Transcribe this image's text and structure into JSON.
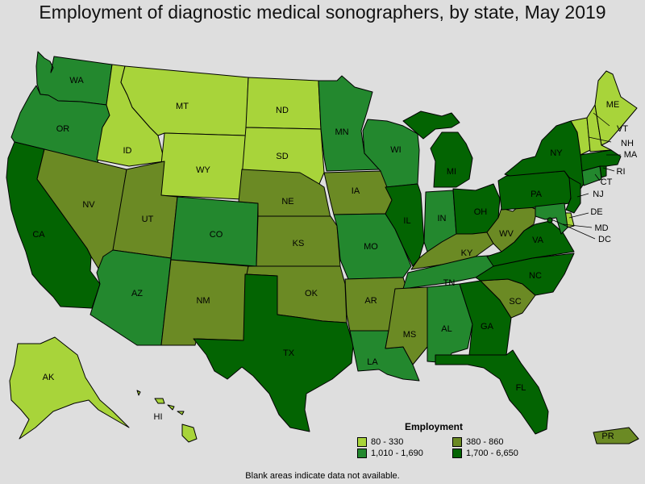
{
  "title": "Employment of diagnostic medical sonographers, by state, May 2019",
  "note": "Blank areas indicate data not available.",
  "colors": {
    "c1": "#a8d43a",
    "c2": "#6b8a24",
    "c3": "#23882e",
    "c4": "#036402"
  },
  "legend": {
    "title": "Employment",
    "items": [
      {
        "label": "80 - 330",
        "color": "#a8d43a"
      },
      {
        "label": "380 - 860",
        "color": "#6b8a24"
      },
      {
        "label": "1,010 - 1,690",
        "color": "#23882e"
      },
      {
        "label": "1,700 - 6,650",
        "color": "#036402"
      }
    ]
  },
  "states": {
    "WA": "WA",
    "OR": "OR",
    "CA": "CA",
    "NV": "NV",
    "ID": "ID",
    "MT": "MT",
    "WY": "WY",
    "UT": "UT",
    "AZ": "AZ",
    "CO": "CO",
    "NM": "NM",
    "ND": "ND",
    "SD": "SD",
    "NE": "NE",
    "KS": "KS",
    "OK": "OK",
    "TX": "TX",
    "MN": "MN",
    "IA": "IA",
    "MO": "MO",
    "AR": "AR",
    "LA": "LA",
    "WI": "WI",
    "IL": "IL",
    "MI": "MI",
    "IN": "IN",
    "OH": "OH",
    "KY": "KY",
    "TN": "TN",
    "MS": "MS",
    "AL": "AL",
    "GA": "GA",
    "FL": "FL",
    "SC": "SC",
    "NC": "NC",
    "VA": "VA",
    "WV": "WV",
    "PA": "PA",
    "NY": "NY",
    "ME": "ME",
    "VT": "VT",
    "NH": "NH",
    "MA": "MA",
    "RI": "RI",
    "CT": "CT",
    "NJ": "NJ",
    "DE": "DE",
    "MD": "MD",
    "DC": "DC",
    "AK": "AK",
    "HI": "HI",
    "PR": "PR"
  }
}
